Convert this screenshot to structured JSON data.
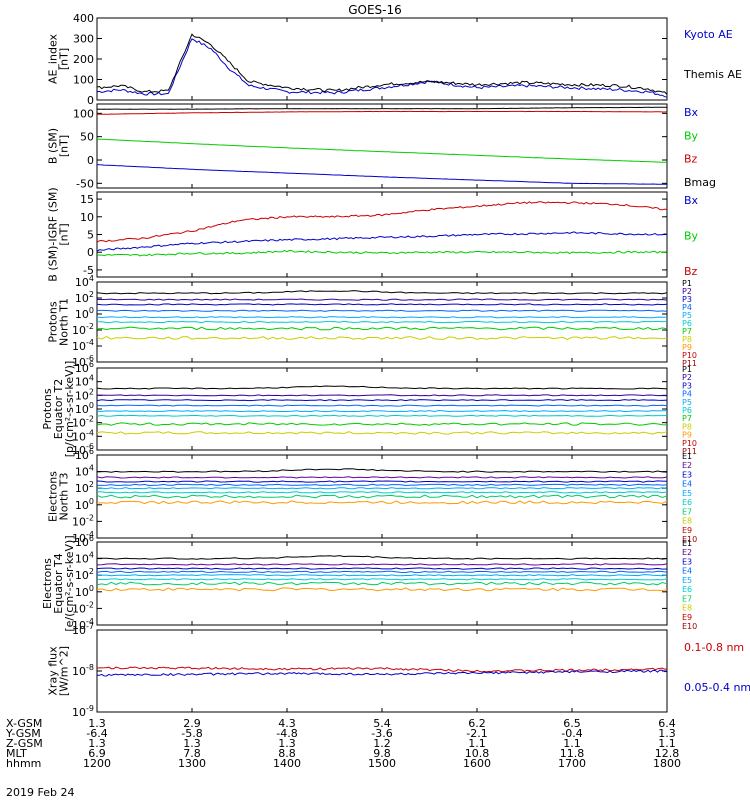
{
  "title": "GOES-16",
  "date": "2019 Feb 24",
  "x_range": [
    "1200",
    "1800"
  ],
  "footer": {
    "labels": [
      "X-GSM",
      "Y-GSM",
      "Z-GSM",
      "MLT",
      "hhmm"
    ],
    "columns": [
      [
        "1.3",
        "-6.4",
        "1.3",
        "6.9",
        "1200"
      ],
      [
        "2.9",
        "-5.8",
        "1.3",
        "7.8",
        "1300"
      ],
      [
        "4.3",
        "-4.8",
        "1.3",
        "8.8",
        "1400"
      ],
      [
        "5.4",
        "-3.6",
        "1.2",
        "9.8",
        "1500"
      ],
      [
        "6.2",
        "-2.1",
        "1.1",
        "10.8",
        "1600"
      ],
      [
        "6.5",
        "-0.4",
        "1.1",
        "11.8",
        "1700"
      ],
      [
        "6.4",
        "1.3",
        "1.1",
        "12.8",
        "1800"
      ]
    ]
  },
  "chart_data": [
    {
      "type": "line",
      "ylabel": [
        "AE_index",
        "[nT]"
      ],
      "ylim": [
        0,
        400
      ],
      "scale": "linear",
      "yticks": [
        "0",
        "100",
        "200",
        "300",
        "400"
      ],
      "x_hours": [
        0,
        0.25,
        0.5,
        0.75,
        1,
        1.2,
        1.4,
        1.6,
        2,
        2.5,
        3,
        3.5,
        4,
        4.5,
        5,
        5.5,
        5.8,
        6
      ],
      "series": [
        {
          "name": "Kyoto AE",
          "color": "#0000cc",
          "values": [
            40,
            50,
            30,
            30,
            300,
            250,
            150,
            70,
            40,
            35,
            60,
            90,
            60,
            70,
            60,
            50,
            40,
            20
          ]
        },
        {
          "name": "Themis AE",
          "color": "#000000",
          "values": [
            60,
            70,
            40,
            45,
            320,
            270,
            180,
            90,
            60,
            45,
            75,
            90,
            75,
            85,
            75,
            70,
            55,
            30
          ]
        }
      ]
    },
    {
      "type": "line",
      "ylabel": [
        "B (SM)",
        "[nT]"
      ],
      "ylim": [
        -60,
        120
      ],
      "scale": "linear",
      "yticks": [
        "-50",
        "0",
        "50",
        "100"
      ],
      "x_hours": [
        0,
        1,
        2,
        3,
        4,
        5,
        6
      ],
      "series": [
        {
          "name": "Bx",
          "color": "#0000cc",
          "values": [
            -10,
            -20,
            -28,
            -36,
            -43,
            -50,
            -52
          ]
        },
        {
          "name": "By",
          "color": "#00cc00",
          "values": [
            45,
            35,
            26,
            18,
            10,
            2,
            -5
          ]
        },
        {
          "name": "Bz",
          "color": "#cc0000",
          "values": [
            98,
            101,
            103,
            104,
            104,
            104,
            103
          ]
        },
        {
          "name": "Bmag",
          "color": "#000000",
          "values": [
            109,
            109,
            110,
            110,
            110,
            112,
            113
          ]
        }
      ]
    },
    {
      "type": "line",
      "ylabel": [
        "B (SM)-IGRF (SM)",
        "[nT]"
      ],
      "ylim": [
        -7,
        17
      ],
      "scale": "linear",
      "yticks": [
        "-5",
        "0",
        "5",
        "10",
        "15"
      ],
      "x_hours": [
        0,
        0.5,
        1,
        1.5,
        2,
        2.5,
        3,
        3.5,
        4,
        4.5,
        5,
        5.5,
        6
      ],
      "series": [
        {
          "name": "Bx",
          "color": "#0000cc",
          "values": [
            0.5,
            1.5,
            2.5,
            3,
            3.5,
            3.8,
            4.2,
            4.5,
            5,
            5.2,
            5.5,
            5.2,
            5
          ]
        },
        {
          "name": "By",
          "color": "#00cc00",
          "values": [
            -0.8,
            -0.8,
            -0.3,
            -0.3,
            0.3,
            0,
            -0.2,
            0,
            0,
            0,
            -0.2,
            0,
            0
          ]
        },
        {
          "name": "Bz",
          "color": "#cc0000",
          "values": [
            3,
            4,
            6,
            9,
            10,
            10,
            10.5,
            12,
            13,
            14,
            14,
            13.5,
            12
          ]
        }
      ]
    },
    {
      "type": "line",
      "ylabel": [
        "Protons",
        "North T1"
      ],
      "ylim": [
        -6,
        4
      ],
      "scale": "log",
      "yticks": [
        "10-6",
        "10-4",
        "10-2",
        "100",
        "102",
        "104"
      ],
      "legend": [
        {
          "label": "P1",
          "color": "#000000"
        },
        {
          "label": "P2",
          "color": "#330099"
        },
        {
          "label": "P3",
          "color": "#0000cc"
        },
        {
          "label": "P4",
          "color": "#0066ff"
        },
        {
          "label": "P5",
          "color": "#00aaff"
        },
        {
          "label": "P6",
          "color": "#00cccc"
        },
        {
          "label": "P7",
          "color": "#00cc00"
        },
        {
          "label": "P8",
          "color": "#cccc00"
        },
        {
          "label": "P9",
          "color": "#ff9900"
        },
        {
          "label": "P10",
          "color": "#cc0000"
        },
        {
          "label": "P11",
          "color": "#990000"
        }
      ],
      "levels": [
        2.6,
        1.8,
        1.2,
        0.4,
        -0.4,
        -1.0,
        -1.8,
        -3.0
      ],
      "level_colors": [
        "#000000",
        "#330099",
        "#0000cc",
        "#0066ff",
        "#00aaff",
        "#00cccc",
        "#00cc00",
        "#cccc00"
      ]
    },
    {
      "type": "line",
      "ylabel": [
        "Protons",
        "Equator T2",
        "[p/(cm²-s-sr-keV)]"
      ],
      "ylim": [
        -6,
        6
      ],
      "scale": "log",
      "yticks": [
        "10-6",
        "10-4",
        "10-2",
        "100",
        "102",
        "104",
        "106"
      ],
      "legend": [
        {
          "label": "P1",
          "color": "#000000"
        },
        {
          "label": "P2",
          "color": "#330099"
        },
        {
          "label": "P3",
          "color": "#0000cc"
        },
        {
          "label": "P4",
          "color": "#0066ff"
        },
        {
          "label": "P5",
          "color": "#00aaff"
        },
        {
          "label": "P6",
          "color": "#00cccc"
        },
        {
          "label": "P7",
          "color": "#00cc00"
        },
        {
          "label": "P8",
          "color": "#cccc00"
        },
        {
          "label": "P9",
          "color": "#ff9900"
        },
        {
          "label": "P10",
          "color": "#cc0000"
        },
        {
          "label": "P11",
          "color": "#990000"
        }
      ],
      "levels": [
        3.0,
        2.0,
        1.3,
        0.5,
        -0.3,
        -1.0,
        -2.2,
        -3.5
      ],
      "level_colors": [
        "#000000",
        "#330099",
        "#0000cc",
        "#0066ff",
        "#00aaff",
        "#00cccc",
        "#00cc00",
        "#cccc00"
      ]
    },
    {
      "type": "line",
      "ylabel": [
        "Electrons",
        "North T3"
      ],
      "ylim": [
        -4,
        6
      ],
      "scale": "log",
      "yticks": [
        "10-4",
        "10-2",
        "100",
        "102",
        "104",
        "106"
      ],
      "legend": [
        {
          "label": "E1",
          "color": "#000000"
        },
        {
          "label": "E2",
          "color": "#660099"
        },
        {
          "label": "E3",
          "color": "#0000cc"
        },
        {
          "label": "E4",
          "color": "#0066ff"
        },
        {
          "label": "E5",
          "color": "#00aaff"
        },
        {
          "label": "E6",
          "color": "#00cccc"
        },
        {
          "label": "E7",
          "color": "#00cc66"
        },
        {
          "label": "E8",
          "color": "#cccc00"
        },
        {
          "label": "E9",
          "color": "#cc0000"
        },
        {
          "label": "E10",
          "color": "#990000"
        }
      ],
      "levels": [
        4.0,
        3.3,
        2.8,
        2.4,
        2.0,
        1.5,
        1.0,
        0.3
      ],
      "level_colors": [
        "#000000",
        "#660099",
        "#0000cc",
        "#0066ff",
        "#00aaff",
        "#00cccc",
        "#00cc66",
        "#ff9900"
      ]
    },
    {
      "type": "line",
      "ylabel": [
        "Electrons",
        "Equator T4",
        "[e/(cm²-s-sr-keV)]"
      ],
      "ylim": [
        -4,
        6
      ],
      "scale": "log",
      "yticks": [
        "10-4",
        "10-2",
        "100",
        "102",
        "104",
        "106"
      ],
      "legend": [
        {
          "label": "E1",
          "color": "#000000"
        },
        {
          "label": "E2",
          "color": "#660099"
        },
        {
          "label": "E3",
          "color": "#0000cc"
        },
        {
          "label": "E4",
          "color": "#0066ff"
        },
        {
          "label": "E5",
          "color": "#00aaff"
        },
        {
          "label": "E6",
          "color": "#00cccc"
        },
        {
          "label": "E7",
          "color": "#00cc66"
        },
        {
          "label": "E8",
          "color": "#cccc00"
        },
        {
          "label": "E9",
          "color": "#cc0000"
        },
        {
          "label": "E10",
          "color": "#990000"
        }
      ],
      "levels": [
        4.0,
        3.3,
        2.8,
        2.4,
        2.0,
        1.5,
        1.0,
        0.3
      ],
      "level_colors": [
        "#000000",
        "#660099",
        "#0000cc",
        "#0066ff",
        "#00aaff",
        "#00cccc",
        "#00cc66",
        "#ff9900"
      ]
    },
    {
      "type": "line",
      "ylabel": [
        "Xray flux",
        "[W/m^2]"
      ],
      "ylim": [
        -9,
        -7
      ],
      "scale": "log",
      "yticks": [
        "10-9",
        "10-8",
        "10-7"
      ],
      "x_hours": [
        0,
        1,
        2,
        3,
        4,
        5,
        6
      ],
      "series": [
        {
          "name": "0.1-0.8 nm",
          "color": "#cc0000",
          "values": [
            -7.92,
            -7.93,
            -7.95,
            -7.94,
            -8.0,
            -7.98,
            -7.95
          ]
        },
        {
          "name": "0.05-0.4 nm",
          "color": "#0000cc",
          "values": [
            -8.1,
            -8.08,
            -8.06,
            -8.08,
            -8.05,
            -8.02,
            -8.0
          ]
        }
      ]
    }
  ]
}
